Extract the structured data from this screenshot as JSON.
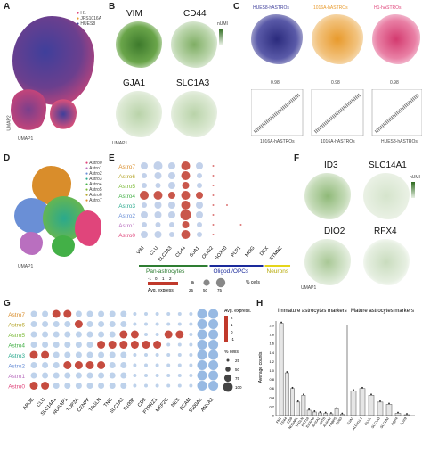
{
  "panels": {
    "A": "A",
    "B": "B",
    "C": "C",
    "D": "D",
    "E": "E",
    "F": "F",
    "G": "G",
    "H": "H"
  },
  "panelA": {
    "legend": [
      "H1",
      "JPS1016A",
      "HUES8"
    ],
    "legend_colors": [
      "#e0457b",
      "#e89a2c",
      "#3f3f9b"
    ],
    "axis_x": "UMAP1",
    "axis_y": "UMAP2"
  },
  "panelB": {
    "genes": [
      "VIM",
      "CD44",
      "GJA1",
      "SLC1A3"
    ],
    "scale_label": "nUMI",
    "axis_x": "UMAP1",
    "axis_y": "UMAP2"
  },
  "panelC": {
    "titles": [
      "HUES8-hASTROs",
      "1016A-hASTROs",
      "H1-hASTROs"
    ],
    "title_colors": [
      "#3f3f9b",
      "#e89a2c",
      "#e0457b"
    ],
    "correlations": [
      "0.98",
      "0.98",
      "0.98"
    ],
    "scatter_x": [
      "1016A-hASTROs",
      "1016A-hASTROs",
      "HUES8-hASTROs"
    ],
    "scatter_y": [
      "H1-hASTROs",
      "HUES8-hASTROs",
      "H1-hASTROs"
    ]
  },
  "panelD": {
    "legend": [
      "Astro0",
      "Astro1",
      "Astro2",
      "Astro3",
      "Astro4",
      "Astro5",
      "Astro6",
      "Astro7"
    ],
    "colors": [
      "#e0457b",
      "#b96fbf",
      "#6a8fd6",
      "#2aa98d",
      "#43b047",
      "#7dbb3a",
      "#b5a52a",
      "#d98d2b"
    ],
    "axis_x": "UMAP1",
    "axis_y": "UMAP2"
  },
  "panelE": {
    "rows": [
      "Astro7",
      "Astro6",
      "Astro5",
      "Astro4",
      "Astro3",
      "Astro2",
      "Astro1",
      "Astro0"
    ],
    "row_colors": [
      "#d98d2b",
      "#b5a52a",
      "#7dbb3a",
      "#43b047",
      "#2aa98d",
      "#6a8fd6",
      "#b96fbf",
      "#e0457b"
    ],
    "cols": [
      "VIM",
      "CLU",
      "SLC1A3",
      "CD44",
      "GJA1",
      "OLIG2",
      "SOX10",
      "PLP1",
      "MOG",
      "DCX",
      "STMN2"
    ],
    "groups": [
      {
        "label": "Pan-astrocytes",
        "color": "#2e7d32"
      },
      {
        "label": "Oligod./OPCs",
        "color": "#1a2a9b"
      },
      {
        "label": "Neurons",
        "color": "#e5d51a"
      }
    ],
    "size_title": "% cells",
    "size_values": [
      "25",
      "50",
      "75"
    ],
    "color_title": "Avg. express.",
    "color_ticks": [
      "-1",
      "0",
      "1",
      "2"
    ]
  },
  "panelF": {
    "genes": [
      "ID3",
      "SLC14A1",
      "DIO2",
      "RFX4"
    ],
    "scale_label": "nUMI",
    "axis_x": "UMAP1",
    "axis_y": "UMAP2"
  },
  "panelG": {
    "rows": [
      "Astro7",
      "Astro6",
      "Astro5",
      "Astro4",
      "Astro3",
      "Astro2",
      "Astro1",
      "Astro0"
    ],
    "row_colors": [
      "#d98d2b",
      "#b5a52a",
      "#7dbb3a",
      "#43b047",
      "#2aa98d",
      "#6a8fd6",
      "#b96fbf",
      "#e0457b"
    ],
    "cols": [
      "APOE",
      "CLU",
      "SLC14A1",
      "NUSAP1",
      "TOP2A",
      "CENPF",
      "TAGLN",
      "TNC",
      "SLC1A3",
      "S100B",
      "CD9",
      "PTPRZ1",
      "MEF2C",
      "NES",
      "BCAM",
      "S100A6",
      "ANXA2"
    ],
    "color_title": "Avg. express.",
    "color_ticks": [
      "2",
      "1",
      "0",
      "-1"
    ],
    "size_title": "% cells",
    "size_values": [
      "25",
      "50",
      "75",
      "100"
    ]
  },
  "panelH": {
    "left_title": "Immature astrocytes markers",
    "right_title": "Mature astrocytes markers",
    "ylabel": "Average counts",
    "yticks": [
      "0",
      "0.2",
      "0.4",
      "0.6",
      "0.8",
      "1.0",
      "1.2",
      "1.4",
      "1.6",
      "1.8",
      "2.0"
    ],
    "left_genes": [
      "FN1",
      "CD44",
      "CD9",
      "NUSAP1",
      "TAGLN",
      "KRT18",
      "S100A6",
      "ANXA1",
      "KRT8",
      "ANXA2",
      "FABP5",
      "CD63"
    ],
    "right_genes": [
      "GJA1",
      "ALDH1L1",
      "GLUL",
      "SLC1A3",
      "SLC1A2",
      "AQP4",
      "SOX9"
    ],
    "chart_data": {
      "type": "bar",
      "series": [
        {
          "name": "Immature",
          "categories": [
            "FN1",
            "CD44",
            "CD9",
            "NUSAP1",
            "TAGLN",
            "KRT18",
            "S100A6",
            "ANXA1",
            "KRT8",
            "ANXA2",
            "FABP5",
            "CD63"
          ],
          "values": [
            2.05,
            0.95,
            0.6,
            0.3,
            0.45,
            0.12,
            0.08,
            0.06,
            0.05,
            0.04,
            0.15,
            0.03
          ]
        },
        {
          "name": "Mature",
          "categories": [
            "GJA1",
            "ALDH1L1",
            "GLUL",
            "SLC1A3",
            "SLC1A2",
            "AQP4",
            "SOX9"
          ],
          "values": [
            0.55,
            0.6,
            0.45,
            0.3,
            0.25,
            0.05,
            0.02
          ]
        }
      ],
      "ylim": [
        0,
        2.1
      ]
    }
  }
}
